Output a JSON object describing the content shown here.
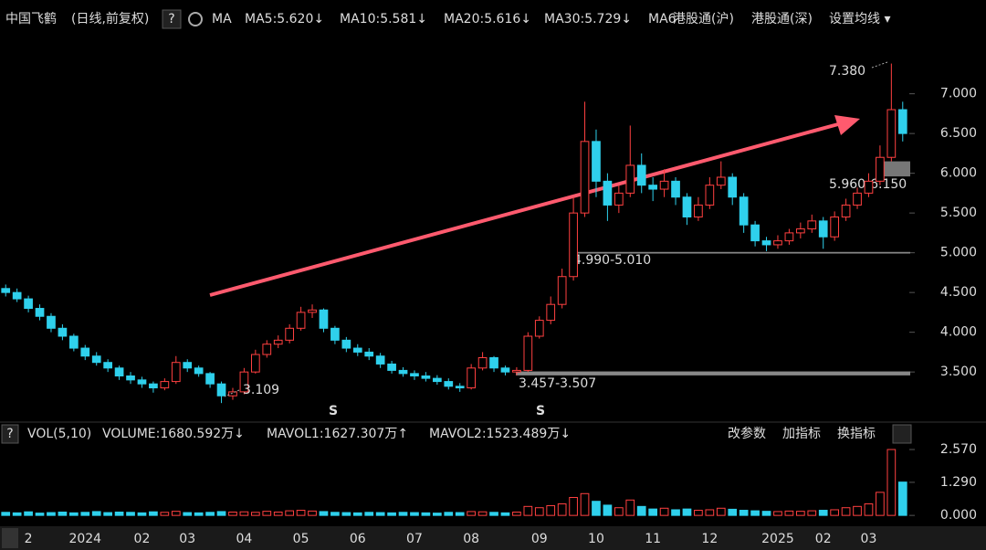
{
  "header": {
    "title": "中国飞鹤",
    "mode": "(日线,前复权)",
    "help": "?",
    "ma": "MA",
    "ma_items": [
      {
        "text": "MA5:5.620↓",
        "color": "#ffffff"
      },
      {
        "text": "MA10:5.581↓",
        "color": "#f5e400"
      },
      {
        "text": "MA20:5.616↓",
        "color": "#ff3cff"
      },
      {
        "text": "MA30:5.729↓",
        "color": "#29e35a"
      },
      {
        "text": "MA6",
        "color": "#ffffff"
      }
    ],
    "links": [
      "港股通(沪)",
      "港股通(深)",
      "设置均线 ▾"
    ]
  },
  "volume_header": {
    "help": "?",
    "name": "VOL(5,10)",
    "items": [
      {
        "text": "VOLUME:1680.592万↓",
        "color": "#ffffff"
      },
      {
        "text": "MAVOL1:1627.307万↑",
        "color": "#f5e400"
      },
      {
        "text": "MAVOL2:1523.489万↓",
        "color": "#ff3cff"
      }
    ],
    "buttons": [
      "改参数",
      "加指标",
      "换指标"
    ]
  },
  "chart_data": {
    "type": "candlestick",
    "up_color": "#ff4040",
    "down_color": "#2fd0ec",
    "categories": [
      null,
      null,
      "2",
      null,
      null,
      null,
      null,
      "2024",
      null,
      null,
      null,
      null,
      "02",
      null,
      null,
      null,
      "03",
      null,
      null,
      null,
      null,
      "04",
      null,
      null,
      null,
      null,
      "05",
      null,
      null,
      null,
      null,
      "06",
      null,
      null,
      null,
      null,
      "07",
      null,
      null,
      null,
      null,
      "08",
      null,
      null,
      null,
      null,
      null,
      "09",
      null,
      null,
      null,
      null,
      "10",
      null,
      null,
      null,
      null,
      "11",
      null,
      null,
      null,
      null,
      "12",
      null,
      null,
      null,
      null,
      null,
      "2025",
      null,
      null,
      null,
      "02",
      null,
      null,
      null,
      "03",
      null,
      null,
      null
    ],
    "open": [
      4.55,
      4.5,
      4.42,
      4.3,
      4.2,
      4.05,
      3.95,
      3.8,
      3.7,
      3.62,
      3.55,
      3.45,
      3.4,
      3.35,
      3.3,
      3.38,
      3.62,
      3.55,
      3.48,
      3.35,
      3.2,
      3.25,
      3.5,
      3.72,
      3.85,
      3.9,
      4.05,
      4.25,
      4.28,
      4.05,
      3.9,
      3.8,
      3.75,
      3.7,
      3.6,
      3.52,
      3.48,
      3.45,
      3.42,
      3.38,
      3.32,
      3.3,
      3.55,
      3.68,
      3.55,
      3.5,
      3.52,
      3.95,
      4.15,
      4.35,
      4.7,
      5.5,
      6.4,
      5.9,
      5.6,
      5.75,
      6.1,
      5.85,
      5.8,
      5.9,
      5.7,
      5.45,
      5.6,
      5.85,
      5.95,
      5.7,
      5.35,
      5.15,
      5.1,
      5.15,
      5.25,
      5.3,
      5.4,
      5.2,
      5.45,
      5.6,
      5.75,
      5.9,
      6.2,
      6.8
    ],
    "high": [
      4.6,
      4.55,
      4.46,
      4.35,
      4.24,
      4.1,
      3.98,
      3.84,
      3.75,
      3.66,
      3.58,
      3.5,
      3.44,
      3.38,
      3.42,
      3.7,
      3.66,
      3.58,
      3.5,
      3.38,
      3.3,
      3.55,
      3.78,
      3.9,
      3.96,
      4.1,
      4.32,
      4.35,
      4.3,
      4.08,
      3.94,
      3.85,
      3.8,
      3.74,
      3.64,
      3.56,
      3.52,
      3.5,
      3.46,
      3.42,
      3.36,
      3.6,
      3.75,
      3.7,
      3.58,
      3.56,
      4.0,
      4.2,
      4.45,
      4.8,
      5.7,
      6.9,
      6.55,
      6.0,
      5.85,
      6.6,
      6.25,
      5.95,
      6.05,
      5.95,
      5.75,
      5.7,
      5.95,
      6.15,
      6.0,
      5.75,
      5.4,
      5.2,
      5.22,
      5.3,
      5.38,
      5.48,
      5.45,
      5.52,
      5.68,
      5.82,
      6.0,
      6.35,
      7.38,
      6.9
    ],
    "low": [
      4.45,
      4.38,
      4.25,
      4.15,
      4.0,
      3.9,
      3.76,
      3.65,
      3.58,
      3.5,
      3.4,
      3.35,
      3.3,
      3.24,
      3.27,
      3.35,
      3.5,
      3.44,
      3.3,
      3.109,
      3.15,
      3.22,
      3.48,
      3.68,
      3.8,
      3.86,
      4.02,
      4.18,
      4.0,
      3.85,
      3.75,
      3.7,
      3.65,
      3.55,
      3.48,
      3.44,
      3.4,
      3.38,
      3.34,
      3.28,
      3.25,
      3.28,
      3.52,
      3.5,
      3.457,
      3.46,
      3.5,
      3.92,
      4.1,
      4.3,
      4.65,
      5.45,
      5.7,
      5.4,
      5.5,
      5.7,
      5.75,
      5.65,
      5.7,
      5.6,
      5.35,
      5.4,
      5.55,
      5.8,
      5.6,
      5.25,
      5.08,
      5.02,
      5.05,
      5.1,
      5.18,
      5.25,
      5.05,
      5.15,
      5.4,
      5.55,
      5.7,
      5.85,
      6.15,
      6.4
    ],
    "close": [
      4.5,
      4.42,
      4.3,
      4.2,
      4.05,
      3.95,
      3.8,
      3.7,
      3.62,
      3.55,
      3.45,
      3.4,
      3.35,
      3.3,
      3.38,
      3.62,
      3.55,
      3.48,
      3.35,
      3.2,
      3.25,
      3.5,
      3.72,
      3.85,
      3.9,
      4.05,
      4.25,
      4.28,
      4.05,
      3.9,
      3.8,
      3.75,
      3.7,
      3.6,
      3.52,
      3.48,
      3.45,
      3.42,
      3.38,
      3.32,
      3.3,
      3.55,
      3.68,
      3.55,
      3.5,
      3.52,
      3.95,
      4.15,
      4.35,
      4.7,
      5.5,
      6.4,
      5.9,
      5.6,
      5.75,
      6.1,
      5.85,
      5.8,
      5.9,
      5.7,
      5.45,
      5.6,
      5.85,
      5.95,
      5.7,
      5.35,
      5.15,
      5.1,
      5.15,
      5.25,
      5.3,
      5.4,
      5.2,
      5.45,
      5.6,
      5.75,
      5.9,
      6.2,
      6.8,
      6.5
    ],
    "ylim": [
      2.95,
      7.49
    ],
    "yticks": [
      {
        "value": 3.5,
        "label": "3.500"
      },
      {
        "value": 4,
        "label": "4.000"
      },
      {
        "value": 4.5,
        "label": "4.500"
      },
      {
        "value": 5,
        "label": "5.000"
      },
      {
        "value": 5.5,
        "label": "5.500"
      },
      {
        "value": 6,
        "label": "6.000"
      },
      {
        "value": 6.5,
        "label": "6.500"
      },
      {
        "value": 7,
        "label": "7.000"
      }
    ],
    "annotations": [
      {
        "text": "7.380"
      },
      {
        "text": "3.109"
      }
    ],
    "price_bands": [
      {
        "label": "4.990-5.010",
        "low": 4.99,
        "high": 5.01
      },
      {
        "label": "3.457-3.507",
        "low": 3.457,
        "high": 3.507
      },
      {
        "label": "5.960-6.150",
        "low": 5.96,
        "high": 6.15
      }
    ],
    "signals": [
      "S",
      "S"
    ],
    "volume": {
      "values": [
        0.12,
        0.1,
        0.14,
        0.09,
        0.11,
        0.13,
        0.1,
        0.12,
        0.15,
        0.11,
        0.13,
        0.12,
        0.1,
        0.14,
        0.12,
        0.16,
        0.11,
        0.1,
        0.12,
        0.15,
        0.13,
        0.14,
        0.12,
        0.16,
        0.13,
        0.18,
        0.2,
        0.17,
        0.15,
        0.12,
        0.11,
        0.1,
        0.12,
        0.11,
        0.1,
        0.12,
        0.11,
        0.1,
        0.09,
        0.12,
        0.11,
        0.15,
        0.14,
        0.12,
        0.1,
        0.13,
        0.35,
        0.3,
        0.38,
        0.45,
        0.7,
        0.85,
        0.55,
        0.4,
        0.3,
        0.6,
        0.35,
        0.25,
        0.28,
        0.22,
        0.25,
        0.2,
        0.22,
        0.28,
        0.24,
        0.2,
        0.18,
        0.16,
        0.15,
        0.17,
        0.16,
        0.18,
        0.2,
        0.22,
        0.3,
        0.35,
        0.45,
        0.9,
        2.57,
        1.3
      ],
      "ylim": [
        -0.28,
        2.82
      ],
      "yticks": [
        {
          "value": 0,
          "label": "0.000"
        },
        {
          "value": 1.29,
          "label": "1.290"
        },
        {
          "value": 2.57,
          "label": "2.570"
        }
      ]
    }
  }
}
